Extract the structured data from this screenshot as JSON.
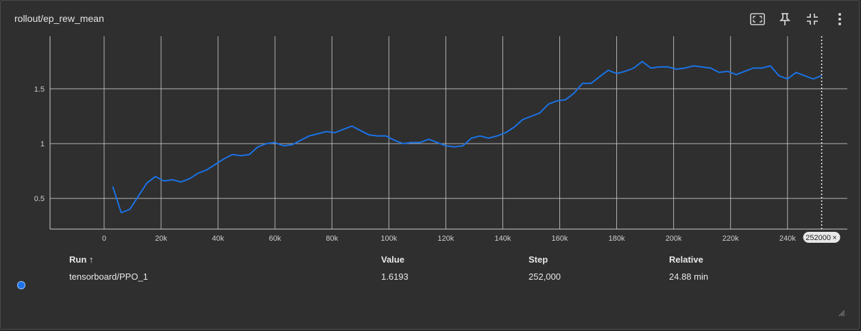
{
  "card": {
    "title": "rollout/ep_rew_mean"
  },
  "toolbar": {
    "items": [
      {
        "name": "fit-domain-icon"
      },
      {
        "name": "pin-icon"
      },
      {
        "name": "collapse-icon"
      },
      {
        "name": "more-vert-icon"
      }
    ]
  },
  "colors": {
    "series": "#1a73e8",
    "grid": "#cccccc",
    "text": "#e8e8e8",
    "axis_text": "#cfcfcf",
    "background": "#2f2f2f"
  },
  "chart_data": {
    "type": "line",
    "title": "rollout/ep_rew_mean",
    "xlabel": "",
    "ylabel": "",
    "xlim": [
      -19000,
      261000
    ],
    "ylim": [
      0.22,
      1.98
    ],
    "x_ticks": [
      0,
      20000,
      40000,
      60000,
      80000,
      100000,
      120000,
      140000,
      160000,
      180000,
      200000,
      220000,
      240000
    ],
    "x_tick_labels": [
      "0",
      "20k",
      "40k",
      "60k",
      "80k",
      "100k",
      "120k",
      "140k",
      "160k",
      "180k",
      "200k",
      "220k",
      "240k"
    ],
    "y_ticks": [
      0.5,
      1,
      1.5
    ],
    "y_tick_labels": [
      "0.5",
      "1",
      "1.5"
    ],
    "grid": true,
    "cursor": {
      "x": 252000,
      "label": "252000"
    },
    "series": [
      {
        "name": "tensorboard/PPO_1",
        "x": [
          3000,
          6000,
          9000,
          12000,
          15000,
          18000,
          21000,
          24000,
          27000,
          30000,
          33000,
          36000,
          39000,
          42000,
          45000,
          48000,
          51000,
          54000,
          57000,
          60000,
          63000,
          66000,
          69000,
          72000,
          75000,
          78000,
          81000,
          84000,
          87000,
          90000,
          93000,
          96000,
          99000,
          102000,
          105000,
          108000,
          111000,
          114000,
          117000,
          120000,
          123000,
          126000,
          129000,
          132000,
          135000,
          138000,
          141000,
          144000,
          147000,
          150000,
          153000,
          156000,
          159000,
          162000,
          165000,
          168000,
          171000,
          174000,
          177000,
          180000,
          183000,
          186000,
          189000,
          192000,
          195000,
          198000,
          201000,
          204000,
          207000,
          210000,
          213000,
          216000,
          219000,
          222000,
          225000,
          228000,
          231000,
          234000,
          237000,
          240000,
          243000,
          246000,
          249000,
          252000
        ],
        "values": [
          0.61,
          0.37,
          0.4,
          0.52,
          0.64,
          0.7,
          0.66,
          0.67,
          0.65,
          0.68,
          0.73,
          0.76,
          0.81,
          0.86,
          0.9,
          0.89,
          0.9,
          0.97,
          1.0,
          1.01,
          0.98,
          0.99,
          1.03,
          1.07,
          1.09,
          1.11,
          1.1,
          1.13,
          1.16,
          1.12,
          1.08,
          1.07,
          1.07,
          1.03,
          1.0,
          1.01,
          1.01,
          1.04,
          1.01,
          0.98,
          0.97,
          0.98,
          1.05,
          1.07,
          1.05,
          1.07,
          1.1,
          1.15,
          1.22,
          1.25,
          1.28,
          1.36,
          1.39,
          1.4,
          1.46,
          1.55,
          1.55,
          1.61,
          1.67,
          1.64,
          1.66,
          1.69,
          1.75,
          1.69,
          1.7,
          1.7,
          1.68,
          1.69,
          1.71,
          1.7,
          1.69,
          1.65,
          1.66,
          1.63,
          1.66,
          1.69,
          1.69,
          1.71,
          1.62,
          1.59,
          1.65,
          1.62,
          1.59,
          1.62
        ],
        "color": "#1a73e8"
      }
    ]
  },
  "table": {
    "headers": {
      "run": "Run ↑",
      "value": "Value",
      "step": "Step",
      "relative": "Relative"
    },
    "rows": [
      {
        "run": "tensorboard/PPO_1",
        "value": "1.6193",
        "step": "252,000",
        "relative": "24.88 min"
      }
    ]
  }
}
